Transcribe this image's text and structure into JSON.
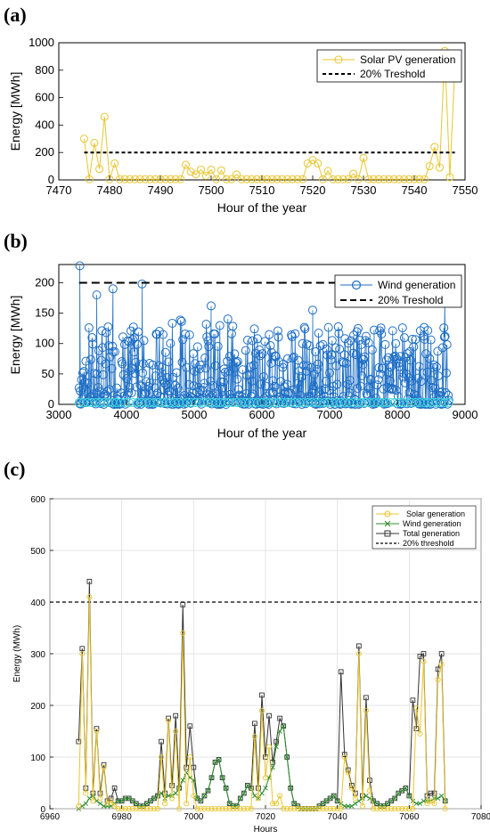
{
  "chart_data": [
    {
      "panel_label": "(a)",
      "type": "line",
      "xlabel": "Hour of the year",
      "ylabel": "Energy [MWh]",
      "xlim": [
        7470,
        7550
      ],
      "ylim": [
        0,
        1000
      ],
      "xticks": [
        7470,
        7480,
        7490,
        7500,
        7510,
        7520,
        7530,
        7540,
        7550
      ],
      "yticks": [
        0,
        200,
        400,
        600,
        800,
        1000
      ],
      "grid": false,
      "legend_position": "top-right",
      "series": [
        {
          "name": "Solar PV generation",
          "color": "#e8c630",
          "marker": "circle",
          "x": [
            7475,
            7476,
            7477,
            7478,
            7479,
            7480,
            7481,
            7482,
            7483,
            7484,
            7485,
            7486,
            7487,
            7488,
            7489,
            7490,
            7491,
            7492,
            7493,
            7494,
            7495,
            7496,
            7497,
            7498,
            7499,
            7500,
            7501,
            7502,
            7503,
            7504,
            7505,
            7506,
            7507,
            7508,
            7509,
            7510,
            7511,
            7512,
            7513,
            7514,
            7515,
            7516,
            7517,
            7518,
            7519,
            7520,
            7521,
            7522,
            7523,
            7524,
            7525,
            7526,
            7527,
            7528,
            7529,
            7530,
            7531,
            7532,
            7533,
            7534,
            7535,
            7536,
            7537,
            7538,
            7539,
            7540,
            7541,
            7542,
            7543,
            7544,
            7545,
            7546,
            7547,
            7548
          ],
          "y": [
            300,
            5,
            270,
            80,
            460,
            5,
            120,
            5,
            5,
            5,
            5,
            5,
            5,
            5,
            5,
            5,
            5,
            5,
            5,
            5,
            110,
            60,
            40,
            75,
            30,
            75,
            5,
            70,
            5,
            5,
            40,
            5,
            5,
            5,
            5,
            5,
            5,
            5,
            5,
            5,
            5,
            5,
            5,
            5,
            120,
            145,
            120,
            5,
            65,
            5,
            5,
            5,
            5,
            45,
            5,
            160,
            5,
            5,
            5,
            5,
            5,
            5,
            5,
            5,
            5,
            5,
            5,
            5,
            100,
            240,
            90,
            940,
            20,
            830
          ]
        },
        {
          "name": "20% Treshold",
          "color": "#000000",
          "style": "dashed",
          "x": [
            7475,
            7548
          ],
          "y": [
            200,
            200
          ]
        }
      ]
    },
    {
      "panel_label": "(b)",
      "type": "scatter",
      "xlabel": "Hour of the year",
      "ylabel": "Energy [MWh]",
      "xlim": [
        3000,
        9000
      ],
      "ylim": [
        0,
        230
      ],
      "xticks": [
        3000,
        4000,
        5000,
        6000,
        7000,
        8000,
        9000
      ],
      "yticks": [
        0,
        50,
        100,
        150,
        200
      ],
      "grid": false,
      "legend_position": "top-right",
      "series": [
        {
          "name": "Wind generation",
          "color": "#1f6fc5",
          "marker": "circle",
          "x_range": [
            3300,
            8760
          ],
          "y_range": [
            0,
            228
          ],
          "notable_points": [
            [
              3310,
              228
            ],
            [
              4230,
              198
            ],
            [
              3560,
              180
            ],
            [
              6750,
              155
            ],
            [
              8700,
              175
            ],
            [
              5250,
              162
            ],
            [
              3800,
              190
            ]
          ]
        },
        {
          "name": "20% Treshold",
          "color": "#000000",
          "style": "dashed",
          "x": [
            3300,
            8760
          ],
          "y": [
            200,
            200
          ]
        }
      ]
    },
    {
      "panel_label": "(c)",
      "type": "line",
      "xlabel": "Hours",
      "ylabel": "Energy (MWh)",
      "xlim": [
        6960,
        7080
      ],
      "ylim": [
        0,
        600
      ],
      "xticks": [
        6960,
        6980,
        7000,
        7020,
        7040,
        7060,
        7080
      ],
      "yticks": [
        0,
        100,
        200,
        300,
        400,
        500,
        600
      ],
      "grid": true,
      "legend_position": "top-right",
      "x": [
        6968,
        6969,
        6970,
        6971,
        6972,
        6973,
        6974,
        6975,
        6976,
        6977,
        6978,
        6979,
        6980,
        6981,
        6982,
        6983,
        6984,
        6985,
        6986,
        6987,
        6988,
        6989,
        6990,
        6991,
        6992,
        6993,
        6994,
        6995,
        6996,
        6997,
        6998,
        6999,
        7000,
        7001,
        7002,
        7003,
        7004,
        7005,
        7006,
        7007,
        7008,
        7009,
        7010,
        7011,
        7012,
        7013,
        7014,
        7015,
        7016,
        7017,
        7018,
        7019,
        7020,
        7021,
        7022,
        7023,
        7024,
        7025,
        7026,
        7027,
        7028,
        7029,
        7030,
        7031,
        7032,
        7033,
        7034,
        7035,
        7036,
        7037,
        7038,
        7039,
        7040,
        7041,
        7042,
        7043,
        7044,
        7045,
        7046,
        7047,
        7048,
        7049,
        7050,
        7051,
        7052,
        7053,
        7054,
        7055,
        7056,
        7057,
        7058,
        7059,
        7060,
        7061,
        7062,
        7063,
        7064,
        7065,
        7066,
        7067,
        7068,
        7069,
        7070
      ],
      "series": [
        {
          "name": "Solar generation",
          "color": "#e8c630",
          "marker": "circle",
          "y": [
            5,
            300,
            30,
            410,
            15,
            150,
            20,
            80,
            10,
            15,
            5,
            0,
            0,
            0,
            0,
            0,
            0,
            0,
            0,
            0,
            0,
            0,
            0,
            100,
            10,
            170,
            20,
            150,
            0,
            340,
            10,
            100,
            25,
            0,
            0,
            0,
            0,
            0,
            0,
            0,
            0,
            0,
            0,
            0,
            0,
            0,
            0,
            0,
            0,
            140,
            20,
            190,
            60,
            120,
            10,
            10,
            25,
            0,
            0,
            0,
            0,
            0,
            0,
            0,
            0,
            0,
            0,
            0,
            0,
            0,
            0,
            0,
            0,
            0,
            100,
            70,
            40,
            20,
            300,
            5,
            190,
            35,
            0,
            0,
            0,
            0,
            0,
            0,
            0,
            0,
            0,
            0,
            0,
            0,
            195,
            145,
            285,
            10,
            15,
            10,
            250,
            280,
            0
          ]
        },
        {
          "name": "Wind generation",
          "color": "#2e8b2e",
          "marker": "x",
          "y": [
            0,
            5,
            10,
            20,
            25,
            15,
            10,
            5,
            5,
            5,
            10,
            15,
            15,
            20,
            20,
            15,
            10,
            5,
            5,
            10,
            15,
            20,
            25,
            30,
            20,
            25,
            25,
            30,
            40,
            55,
            70,
            60,
            55,
            20,
            15,
            25,
            35,
            60,
            90,
            95,
            60,
            40,
            10,
            5,
            5,
            20,
            30,
            45,
            40,
            25,
            20,
            30,
            40,
            60,
            80,
            120,
            150,
            160,
            100,
            40,
            10,
            5,
            0,
            0,
            0,
            0,
            0,
            5,
            10,
            15,
            20,
            25,
            15,
            10,
            5,
            5,
            5,
            10,
            15,
            20,
            25,
            20,
            15,
            10,
            5,
            5,
            10,
            15,
            20,
            30,
            35,
            40,
            25,
            15,
            10,
            10,
            15,
            15,
            15,
            20,
            20,
            25,
            15
          ]
        },
        {
          "name": "Total generation",
          "color": "#333333",
          "marker": "square",
          "y": [
            130,
            310,
            40,
            440,
            30,
            155,
            30,
            85,
            15,
            20,
            40,
            15,
            15,
            20,
            20,
            15,
            10,
            5,
            5,
            10,
            15,
            20,
            25,
            130,
            30,
            175,
            45,
            180,
            40,
            395,
            80,
            160,
            80,
            20,
            15,
            25,
            35,
            60,
            90,
            95,
            60,
            40,
            10,
            5,
            5,
            20,
            30,
            45,
            40,
            165,
            40,
            220,
            100,
            180,
            90,
            130,
            175,
            160,
            100,
            40,
            10,
            5,
            0,
            0,
            0,
            0,
            0,
            5,
            10,
            15,
            20,
            25,
            15,
            265,
            105,
            75,
            45,
            30,
            315,
            25,
            215,
            55,
            15,
            10,
            5,
            5,
            10,
            15,
            20,
            30,
            35,
            40,
            25,
            210,
            155,
            295,
            300,
            25,
            30,
            30,
            270,
            300,
            15
          ]
        },
        {
          "name": "20% threshold",
          "color": "#000000",
          "style": "dashed",
          "x": [
            6960,
            7080
          ],
          "y": [
            400,
            400
          ]
        }
      ]
    }
  ]
}
